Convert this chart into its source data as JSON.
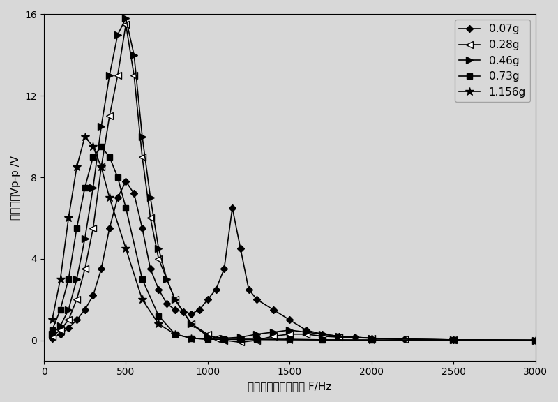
{
  "title": "",
  "xlabel": "被测电压频率的变化 F/Hz",
  "ylabel": "测量信号Vp-p /V",
  "xlim": [
    0,
    3000
  ],
  "ylim": [
    -1,
    16
  ],
  "yticks": [
    0,
    4,
    8,
    12,
    16
  ],
  "xticks": [
    0,
    500,
    1000,
    1500,
    2000,
    2500,
    3000
  ],
  "background_color": "#d8d8d8",
  "series": [
    {
      "label": "0.07g",
      "marker": "D",
      "mfc": "black",
      "mec": "black",
      "marker_size": 5,
      "color": "#000000",
      "linestyle": "-",
      "x": [
        50,
        100,
        150,
        200,
        250,
        300,
        350,
        400,
        450,
        500,
        550,
        600,
        650,
        700,
        750,
        800,
        850,
        900,
        950,
        1000,
        1050,
        1100,
        1150,
        1200,
        1250,
        1300,
        1400,
        1500,
        1600,
        1700,
        1800,
        1900,
        2000,
        2200,
        2500,
        3000
      ],
      "y": [
        0.1,
        0.3,
        0.6,
        1.0,
        1.5,
        2.2,
        3.5,
        5.5,
        7.0,
        7.8,
        7.2,
        5.5,
        3.5,
        2.5,
        1.8,
        1.5,
        1.4,
        1.3,
        1.5,
        2.0,
        2.5,
        3.5,
        6.5,
        4.5,
        2.5,
        2.0,
        1.5,
        1.0,
        0.5,
        0.3,
        0.2,
        0.15,
        0.1,
        0.05,
        0.02,
        0.0
      ]
    },
    {
      "label": "0.28g",
      "marker": "<",
      "mfc": "white",
      "mec": "black",
      "marker_size": 7,
      "color": "#000000",
      "linestyle": "-",
      "x": [
        50,
        100,
        150,
        200,
        250,
        300,
        350,
        400,
        450,
        500,
        550,
        600,
        650,
        700,
        800,
        900,
        1000,
        1050,
        1100,
        1200,
        1300,
        1400,
        1500,
        1600,
        1700,
        1800,
        2000,
        2200,
        2500,
        3000
      ],
      "y": [
        0.2,
        0.5,
        1.0,
        2.0,
        3.5,
        5.5,
        8.5,
        11.0,
        13.0,
        15.5,
        13.0,
        9.0,
        6.0,
        4.0,
        2.0,
        0.8,
        0.3,
        0.1,
        0.0,
        -0.1,
        0.0,
        0.2,
        0.3,
        0.3,
        0.2,
        0.15,
        0.1,
        0.05,
        0.02,
        0.0
      ]
    },
    {
      "label": "0.46g",
      "marker": ">",
      "mfc": "black",
      "mec": "black",
      "marker_size": 7,
      "color": "#000000",
      "linestyle": "-",
      "x": [
        50,
        100,
        150,
        200,
        250,
        300,
        350,
        400,
        450,
        500,
        550,
        600,
        650,
        700,
        750,
        800,
        900,
        1000,
        1100,
        1200,
        1300,
        1400,
        1500,
        1600,
        1700,
        1800,
        2000,
        2500,
        3000
      ],
      "y": [
        0.3,
        0.7,
        1.5,
        3.0,
        5.0,
        7.5,
        10.5,
        13.0,
        15.0,
        15.8,
        14.0,
        10.0,
        7.0,
        4.5,
        3.0,
        2.0,
        0.8,
        0.2,
        0.1,
        0.15,
        0.3,
        0.4,
        0.5,
        0.4,
        0.3,
        0.2,
        0.1,
        0.02,
        0.0
      ]
    },
    {
      "label": "0.73g",
      "marker": "s",
      "mfc": "black",
      "mec": "black",
      "marker_size": 6,
      "color": "#000000",
      "linestyle": "-",
      "x": [
        50,
        100,
        150,
        200,
        250,
        300,
        350,
        400,
        450,
        500,
        600,
        700,
        800,
        900,
        1000,
        1100,
        1200,
        1300,
        1500,
        1700,
        2000,
        2500,
        3000
      ],
      "y": [
        0.5,
        1.5,
        3.0,
        5.5,
        7.5,
        9.0,
        9.5,
        9.0,
        8.0,
        6.5,
        3.0,
        1.2,
        0.3,
        0.1,
        0.05,
        0.05,
        0.05,
        0.05,
        0.05,
        0.02,
        0.01,
        0.01,
        0.0
      ]
    },
    {
      "label": "1.156g",
      "marker": "*",
      "mfc": "black",
      "mec": "black",
      "marker_size": 9,
      "color": "#000000",
      "linestyle": "-",
      "x": [
        50,
        100,
        150,
        200,
        250,
        300,
        350,
        400,
        500,
        600,
        700,
        800,
        900,
        1000,
        1500,
        2000,
        2500,
        3000
      ],
      "y": [
        1.0,
        3.0,
        6.0,
        8.5,
        10.0,
        9.5,
        8.5,
        7.0,
        4.5,
        2.0,
        0.8,
        0.3,
        0.1,
        0.05,
        0.02,
        0.01,
        0.01,
        0.0
      ]
    }
  ],
  "legend_loc": "upper right",
  "font_size": 11,
  "tick_font_size": 10
}
